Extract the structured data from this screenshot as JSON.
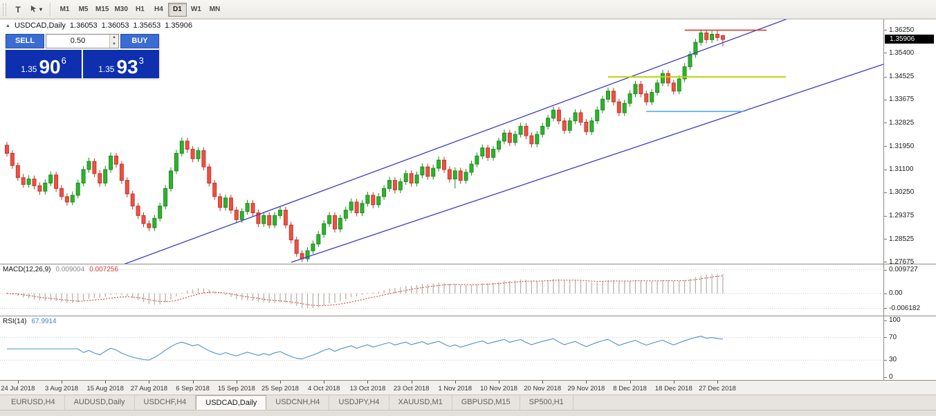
{
  "toolbar": {
    "text_tool_label": "T",
    "timeframes": [
      "M1",
      "M5",
      "M15",
      "M30",
      "H1",
      "H4",
      "D1",
      "W1",
      "MN"
    ],
    "active_timeframe": "D1"
  },
  "chart": {
    "title_marker": "▲",
    "symbol_label": "USDCAD,Daily",
    "ohlc": {
      "open": "1.36053",
      "high": "1.36053",
      "low": "1.35653",
      "close": "1.35906"
    },
    "current_price": "1.35906"
  },
  "trade": {
    "sell_label": "SELL",
    "buy_label": "BUY",
    "volume": "0.50",
    "sell_price_small": "1.35",
    "sell_price_big": "90",
    "sell_price_sup": "6",
    "buy_price_small": "1.35",
    "buy_price_big": "93",
    "buy_price_sup": "3"
  },
  "macd": {
    "label": "MACD(12,26,9)",
    "value_main": "0.009004",
    "value_signal": "0.007256",
    "ticks": [
      "0.009727",
      "0.00",
      "-0.006182"
    ]
  },
  "rsi": {
    "label": "RSI(14)",
    "value": "67.9914",
    "ticks": [
      "100",
      "70",
      "30",
      "0"
    ],
    "levels": [
      70,
      30
    ]
  },
  "tabs": [
    "EURUSD,H4",
    "AUDUSD,Daily",
    "USDCHF,H4",
    "USDCAD,Daily",
    "USDCNH,H4",
    "USDJPY,H4",
    "XAUUSD,M1",
    "GBPUSD,M15",
    "SP500,H1"
  ],
  "active_tab": "USDCAD,Daily",
  "colors": {
    "up_candle": "#2db42d",
    "up_border": "#1d8a1d",
    "down_candle": "#f05043",
    "down_border": "#bb3a2e",
    "channel_line": "#3a3ac8",
    "resistance_line": "#d63a2f",
    "support_line_yellow": "#bfd300",
    "support_line_blue": "#58aaf0",
    "macd_histogram": "#b3ada7",
    "macd_signal": "#d03030",
    "rsi_line": "#4a8fd2",
    "badge_bg": "#000000",
    "trade_button_blue": "#3b6cd4",
    "price_panel_navy": "#0e2fae"
  },
  "chart_data": {
    "type": "candlestick",
    "symbol": "USDCAD",
    "timeframe": "Daily",
    "price_range": [
      1.2762,
      1.3665
    ],
    "y_ticks": [
      "1.36250",
      "1.35400",
      "1.34525",
      "1.33675",
      "1.32825",
      "1.31950",
      "1.31100",
      "1.30250",
      "1.29375",
      "1.28525",
      "1.27675"
    ],
    "x_labels": [
      "24 Jul 2018",
      "3 Aug 2018",
      "15 Aug 2018",
      "27 Aug 2018",
      "6 Sep 2018",
      "15 Sep 2018",
      "25 Sep 2018",
      "4 Oct 2018",
      "13 Oct 2018",
      "23 Oct 2018",
      "1 Nov 2018",
      "10 Nov 2018",
      "20 Nov 2018",
      "29 Nov 2018",
      "8 Dec 2018",
      "18 Dec 2018",
      "27 Dec 2018"
    ],
    "x_label_indices": [
      2,
      10,
      18,
      26,
      34,
      42,
      50,
      58,
      66,
      74,
      82,
      90,
      98,
      106,
      114,
      122,
      130
    ],
    "candles": [
      [
        1.32,
        1.3212,
        1.3158,
        1.317
      ],
      [
        1.317,
        1.3182,
        1.3113,
        1.3125
      ],
      [
        1.3125,
        1.3137,
        1.3068,
        1.308
      ],
      [
        1.308,
        1.3094,
        1.3043,
        1.3055
      ],
      [
        1.3055,
        1.3089,
        1.3043,
        1.3075
      ],
      [
        1.3075,
        1.3088,
        1.3037,
        1.305
      ],
      [
        1.305,
        1.3063,
        1.3016,
        1.303
      ],
      [
        1.303,
        1.3074,
        1.3018,
        1.306
      ],
      [
        1.306,
        1.3103,
        1.3048,
        1.309
      ],
      [
        1.309,
        1.3102,
        1.3027,
        1.304
      ],
      [
        1.304,
        1.3053,
        1.2997,
        1.301
      ],
      [
        1.301,
        1.3022,
        1.2977,
        1.299
      ],
      [
        1.299,
        1.3029,
        1.2978,
        1.3015
      ],
      [
        1.3015,
        1.3073,
        1.3003,
        1.306
      ],
      [
        1.306,
        1.3123,
        1.3048,
        1.311
      ],
      [
        1.311,
        1.3154,
        1.3098,
        1.314
      ],
      [
        1.314,
        1.3152,
        1.3082,
        1.3095
      ],
      [
        1.3095,
        1.3108,
        1.3047,
        1.306
      ],
      [
        1.306,
        1.3124,
        1.3048,
        1.311
      ],
      [
        1.311,
        1.3173,
        1.3098,
        1.316
      ],
      [
        1.316,
        1.3172,
        1.3117,
        1.313
      ],
      [
        1.313,
        1.3142,
        1.3057,
        1.307
      ],
      [
        1.307,
        1.3082,
        1.3007,
        1.302
      ],
      [
        1.302,
        1.3032,
        1.2962,
        1.2975
      ],
      [
        1.2975,
        1.2987,
        1.2927,
        1.294
      ],
      [
        1.294,
        1.2952,
        1.2897,
        1.291
      ],
      [
        1.291,
        1.2922,
        1.2882,
        1.2895
      ],
      [
        1.2895,
        1.2943,
        1.2883,
        1.293
      ],
      [
        1.293,
        1.2988,
        1.2918,
        1.2975
      ],
      [
        1.2975,
        1.3053,
        1.2963,
        1.304
      ],
      [
        1.304,
        1.3118,
        1.3028,
        1.3105
      ],
      [
        1.3105,
        1.3183,
        1.3093,
        1.317
      ],
      [
        1.317,
        1.3228,
        1.3158,
        1.3215
      ],
      [
        1.3215,
        1.3227,
        1.3172,
        1.3185
      ],
      [
        1.3185,
        1.3197,
        1.3137,
        1.315
      ],
      [
        1.315,
        1.3193,
        1.3138,
        1.318
      ],
      [
        1.318,
        1.3192,
        1.3107,
        1.312
      ],
      [
        1.312,
        1.3132,
        1.3047,
        1.306
      ],
      [
        1.306,
        1.3072,
        1.2997,
        1.301
      ],
      [
        1.301,
        1.3022,
        1.2957,
        1.297
      ],
      [
        1.297,
        1.3018,
        1.2958,
        1.3005
      ],
      [
        1.3005,
        1.3017,
        1.2947,
        1.296
      ],
      [
        1.296,
        1.2972,
        1.2912,
        1.2925
      ],
      [
        1.2925,
        1.2968,
        1.2913,
        1.2955
      ],
      [
        1.2955,
        1.2998,
        1.2943,
        1.2985
      ],
      [
        1.2985,
        1.2997,
        1.2937,
        1.295
      ],
      [
        1.295,
        1.2962,
        1.2897,
        1.291
      ],
      [
        1.291,
        1.2953,
        1.2898,
        1.294
      ],
      [
        1.294,
        1.2952,
        1.2892,
        1.2905
      ],
      [
        1.2905,
        1.2953,
        1.2893,
        1.294
      ],
      [
        1.294,
        1.2973,
        1.2928,
        1.296
      ],
      [
        1.296,
        1.2972,
        1.2892,
        1.2905
      ],
      [
        1.2905,
        1.2917,
        1.2837,
        1.285
      ],
      [
        1.285,
        1.2862,
        1.2787,
        1.28
      ],
      [
        1.28,
        1.2812,
        1.2768,
        1.278
      ],
      [
        1.278,
        1.2823,
        1.277,
        1.281
      ],
      [
        1.281,
        1.2848,
        1.2798,
        1.2835
      ],
      [
        1.2835,
        1.2883,
        1.2823,
        1.287
      ],
      [
        1.287,
        1.2923,
        1.2858,
        1.291
      ],
      [
        1.291,
        1.2953,
        1.2898,
        1.294
      ],
      [
        1.294,
        1.2952,
        1.2877,
        1.289
      ],
      [
        1.289,
        1.2943,
        1.2878,
        1.293
      ],
      [
        1.293,
        1.2973,
        1.2918,
        1.296
      ],
      [
        1.296,
        1.3003,
        1.2948,
        1.299
      ],
      [
        1.299,
        1.3002,
        1.2937,
        1.295
      ],
      [
        1.295,
        1.2998,
        1.2938,
        1.2985
      ],
      [
        1.2985,
        1.3028,
        1.2973,
        1.3015
      ],
      [
        1.3015,
        1.3027,
        1.2967,
        1.298
      ],
      [
        1.298,
        1.3023,
        1.2968,
        1.301
      ],
      [
        1.301,
        1.3053,
        1.2998,
        1.304
      ],
      [
        1.304,
        1.3083,
        1.3028,
        1.307
      ],
      [
        1.307,
        1.3082,
        1.3022,
        1.3035
      ],
      [
        1.3035,
        1.3078,
        1.3023,
        1.3065
      ],
      [
        1.3065,
        1.3108,
        1.3053,
        1.3095
      ],
      [
        1.3095,
        1.3107,
        1.3047,
        1.306
      ],
      [
        1.306,
        1.3103,
        1.3048,
        1.309
      ],
      [
        1.309,
        1.3133,
        1.3078,
        1.312
      ],
      [
        1.312,
        1.3132,
        1.3072,
        1.3085
      ],
      [
        1.3085,
        1.3128,
        1.3073,
        1.3115
      ],
      [
        1.3115,
        1.3158,
        1.3103,
        1.3145
      ],
      [
        1.3145,
        1.3157,
        1.3097,
        1.311
      ],
      [
        1.311,
        1.3122,
        1.3062,
        1.3075
      ],
      [
        1.3075,
        1.3118,
        1.304,
        1.3105
      ],
      [
        1.3105,
        1.3117,
        1.3057,
        1.307
      ],
      [
        1.307,
        1.3113,
        1.3058,
        1.31
      ],
      [
        1.31,
        1.3143,
        1.3088,
        1.313
      ],
      [
        1.313,
        1.3173,
        1.3118,
        1.316
      ],
      [
        1.316,
        1.3203,
        1.3148,
        1.319
      ],
      [
        1.319,
        1.3202,
        1.3142,
        1.3155
      ],
      [
        1.3155,
        1.3198,
        1.3143,
        1.3185
      ],
      [
        1.3185,
        1.3228,
        1.3173,
        1.3215
      ],
      [
        1.3215,
        1.3258,
        1.3203,
        1.3245
      ],
      [
        1.3245,
        1.3257,
        1.3197,
        1.321
      ],
      [
        1.321,
        1.3253,
        1.3198,
        1.324
      ],
      [
        1.324,
        1.3283,
        1.3228,
        1.327
      ],
      [
        1.327,
        1.3282,
        1.3222,
        1.3235
      ],
      [
        1.3235,
        1.3247,
        1.3192,
        1.3205
      ],
      [
        1.3205,
        1.3253,
        1.3193,
        1.324
      ],
      [
        1.324,
        1.3283,
        1.3228,
        1.327
      ],
      [
        1.327,
        1.3313,
        1.3258,
        1.33
      ],
      [
        1.33,
        1.3343,
        1.3288,
        1.333
      ],
      [
        1.333,
        1.3342,
        1.3277,
        1.329
      ],
      [
        1.329,
        1.3302,
        1.3242,
        1.3255
      ],
      [
        1.3255,
        1.3303,
        1.3243,
        1.329
      ],
      [
        1.329,
        1.3333,
        1.3278,
        1.332
      ],
      [
        1.332,
        1.3332,
        1.3272,
        1.3285
      ],
      [
        1.3285,
        1.3297,
        1.3237,
        1.325
      ],
      [
        1.325,
        1.3303,
        1.3238,
        1.329
      ],
      [
        1.329,
        1.3343,
        1.3278,
        1.333
      ],
      [
        1.333,
        1.3383,
        1.3318,
        1.337
      ],
      [
        1.337,
        1.3413,
        1.3358,
        1.34
      ],
      [
        1.34,
        1.3412,
        1.3347,
        1.336
      ],
      [
        1.336,
        1.3372,
        1.3307,
        1.332
      ],
      [
        1.332,
        1.3368,
        1.3308,
        1.3355
      ],
      [
        1.3355,
        1.3403,
        1.3343,
        1.339
      ],
      [
        1.339,
        1.3438,
        1.3378,
        1.3425
      ],
      [
        1.3425,
        1.3437,
        1.3377,
        1.339
      ],
      [
        1.339,
        1.3402,
        1.3347,
        1.336
      ],
      [
        1.336,
        1.3408,
        1.3348,
        1.3395
      ],
      [
        1.3395,
        1.3443,
        1.3383,
        1.343
      ],
      [
        1.343,
        1.3478,
        1.3418,
        1.3465
      ],
      [
        1.3465,
        1.3477,
        1.3417,
        1.343
      ],
      [
        1.343,
        1.3442,
        1.3387,
        1.34
      ],
      [
        1.34,
        1.3458,
        1.3388,
        1.3445
      ],
      [
        1.3445,
        1.3503,
        1.3433,
        1.349
      ],
      [
        1.349,
        1.3548,
        1.3478,
        1.3535
      ],
      [
        1.3535,
        1.3593,
        1.3523,
        1.358
      ],
      [
        1.358,
        1.3628,
        1.3568,
        1.3615
      ],
      [
        1.3615,
        1.3627,
        1.3577,
        1.359
      ],
      [
        1.359,
        1.3623,
        1.3578,
        1.361
      ],
      [
        1.361,
        1.3624,
        1.3585,
        1.3598
      ],
      [
        1.36053,
        1.36053,
        1.35653,
        1.35906
      ]
    ],
    "hlines": [
      {
        "name": "resistance-line",
        "price": 1.3625,
        "from_index": 124,
        "to_index": 139,
        "color": "#d63a2f",
        "width": 1.6
      },
      {
        "name": "support-line-yellow",
        "price": 1.34525,
        "from_index": 110,
        "to_index": 142.5,
        "color": "#bfd300",
        "width": 2
      },
      {
        "name": "support-line-blue",
        "price": 1.3325,
        "from_index": 117,
        "to_index": 135,
        "color": "#58aaf0",
        "width": 1.6
      }
    ],
    "trendlines": [
      {
        "name": "channel-upper",
        "x1_index": 19,
        "price1": 1.2742,
        "x2_index": 144,
        "price2": 1.3676,
        "color": "#3a3ac8"
      },
      {
        "name": "channel-lower",
        "x1_index": 52,
        "price1": 1.2767,
        "x2_index": 160.5,
        "price2": 1.35,
        "color": "#3a3ac8"
      }
    ],
    "indicators": {
      "macd": {
        "params": [
          12,
          26,
          9
        ],
        "last_macd": 0.009004,
        "last_signal": 0.007256,
        "axis": [
          0.009727,
          0,
          -0.006182
        ]
      },
      "rsi": {
        "params": [
          14
        ],
        "last": 67.9914,
        "levels": [
          70,
          30
        ],
        "axis": [
          100,
          70,
          30,
          0
        ]
      }
    }
  }
}
